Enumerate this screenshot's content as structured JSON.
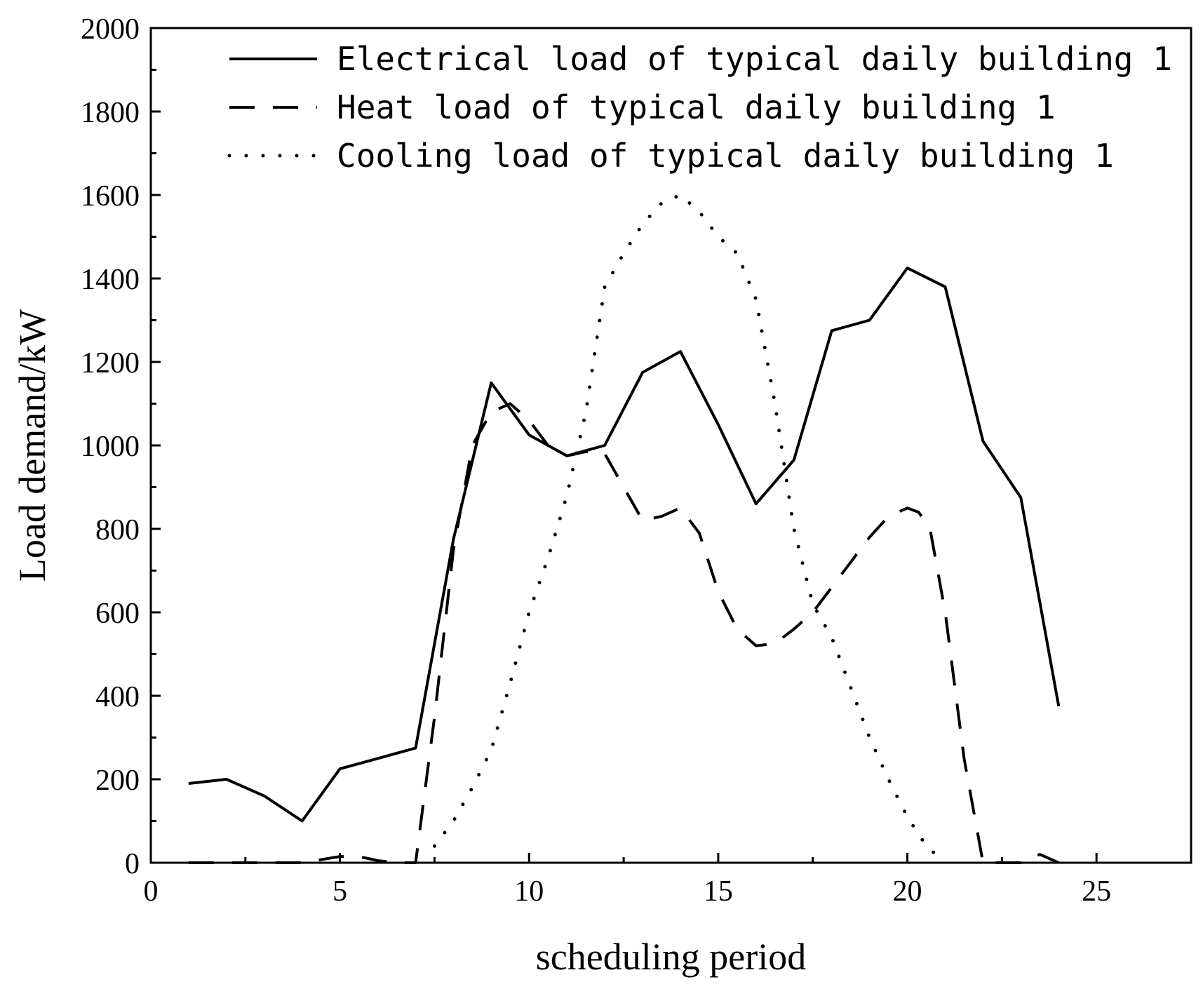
{
  "chart_data": {
    "type": "line",
    "title": "",
    "xlabel": "scheduling period",
    "ylabel": "Load demand/kW",
    "xlim": [
      0,
      27.5
    ],
    "ylim": [
      0,
      2000
    ],
    "xticks": [
      0,
      5,
      10,
      15,
      20,
      25
    ],
    "yticks": [
      0,
      200,
      400,
      600,
      800,
      1000,
      1200,
      1400,
      1600,
      1800,
      2000
    ],
    "xtick_labels": [
      "0",
      "5",
      "10",
      "15",
      "20",
      "25"
    ],
    "ytick_labels": [
      "0",
      "200",
      "400",
      "600",
      "800",
      "1000",
      "1200",
      "1400",
      "1600",
      "1800",
      "2000"
    ],
    "grid": false,
    "legend_position": "top-right",
    "series": [
      {
        "name": "Electrical load of typical daily building 1",
        "style": "solid",
        "x": [
          1,
          2,
          3,
          4,
          5,
          6,
          7,
          8,
          9,
          10,
          11,
          12,
          13,
          14,
          15,
          16,
          17,
          18,
          19,
          20,
          21,
          22,
          23,
          24
        ],
        "values": [
          190,
          200,
          160,
          100,
          225,
          250,
          275,
          775,
          1150,
          1025,
          975,
          1000,
          1175,
          1225,
          1050,
          860,
          965,
          1275,
          1300,
          1425,
          1380,
          1010,
          875,
          375
        ]
      },
      {
        "name": "Heat load of typical daily building 1",
        "style": "dashed",
        "x": [
          1,
          2,
          3,
          4,
          5,
          5.5,
          6,
          6.5,
          7,
          7.5,
          8,
          8.5,
          9,
          9.5,
          10,
          10.5,
          11,
          11.5,
          12,
          12.5,
          13,
          13.5,
          14,
          14.5,
          15,
          15.5,
          16,
          16.5,
          17,
          17.5,
          18,
          18.5,
          19,
          19.5,
          20,
          20.3,
          20.6,
          21,
          21.5,
          22,
          22.5,
          23,
          23.5,
          24
        ],
        "values": [
          0,
          0,
          0,
          0,
          15,
          15,
          5,
          0,
          0,
          350,
          750,
          1000,
          1080,
          1100,
          1060,
          1000,
          975,
          985,
          980,
          900,
          820,
          830,
          850,
          790,
          650,
          560,
          520,
          525,
          560,
          600,
          660,
          720,
          780,
          830,
          850,
          840,
          800,
          600,
          250,
          0,
          0,
          0,
          20,
          0
        ]
      },
      {
        "name": "Cooling load of typical daily building 1",
        "style": "dotted",
        "x": [
          7.5,
          8,
          8.5,
          9,
          9.5,
          10,
          10.5,
          11,
          11.5,
          12,
          12.5,
          13,
          13.5,
          14,
          14.5,
          15,
          15.5,
          16,
          16.5,
          17,
          17.5,
          18,
          18.5,
          19,
          19.5,
          20,
          20.5,
          21
        ],
        "values": [
          40,
          100,
          180,
          270,
          430,
          600,
          730,
          880,
          1080,
          1380,
          1460,
          1530,
          1580,
          1600,
          1560,
          1500,
          1460,
          1350,
          1100,
          800,
          620,
          540,
          420,
          300,
          200,
          110,
          40,
          0
        ]
      }
    ]
  }
}
